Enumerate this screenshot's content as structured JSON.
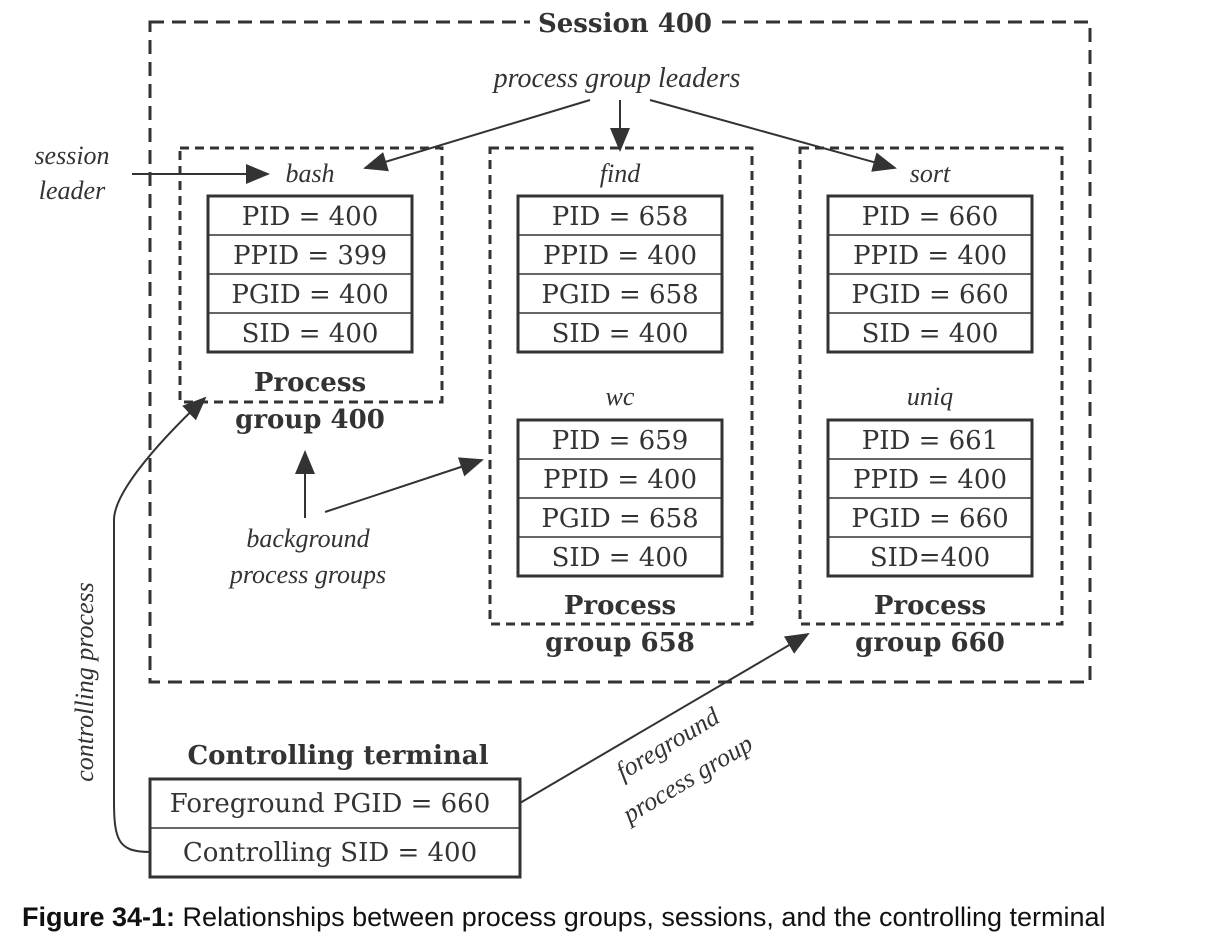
{
  "session": {
    "title": "Session 400"
  },
  "labels": {
    "process_group_leaders": "process group leaders",
    "session_leader_1": "session",
    "session_leader_2": "leader",
    "background_1": "background",
    "background_2": "process groups",
    "controlling_process": "controlling process",
    "foreground_1": "foreground",
    "foreground_2": "process group"
  },
  "groups": [
    {
      "title_1": "Process",
      "title_2": "group 400",
      "processes": [
        {
          "name": "bash",
          "fields": [
            "PID = 400",
            "PPID = 399",
            "PGID = 400",
            "SID = 400"
          ]
        }
      ]
    },
    {
      "title_1": "Process",
      "title_2": "group 658",
      "processes": [
        {
          "name": "find",
          "fields": [
            "PID = 658",
            "PPID = 400",
            "PGID = 658",
            "SID = 400"
          ]
        },
        {
          "name": "wc",
          "fields": [
            "PID = 659",
            "PPID = 400",
            "PGID = 658",
            "SID = 400"
          ]
        }
      ]
    },
    {
      "title_1": "Process",
      "title_2": "group 660",
      "processes": [
        {
          "name": "sort",
          "fields": [
            "PID = 660",
            "PPID = 400",
            "PGID = 660",
            "SID = 400"
          ]
        },
        {
          "name": "uniq",
          "fields": [
            "PID = 661",
            "PPID = 400",
            "PGID = 660",
            "SID=400"
          ]
        }
      ]
    }
  ],
  "terminal": {
    "title": "Controlling terminal",
    "fields": [
      "Foreground PGID = 660",
      "Controlling SID = 400"
    ]
  },
  "caption": {
    "label": "Figure 34-1:",
    "text": " Relationships between process groups, sessions, and the controlling terminal"
  }
}
